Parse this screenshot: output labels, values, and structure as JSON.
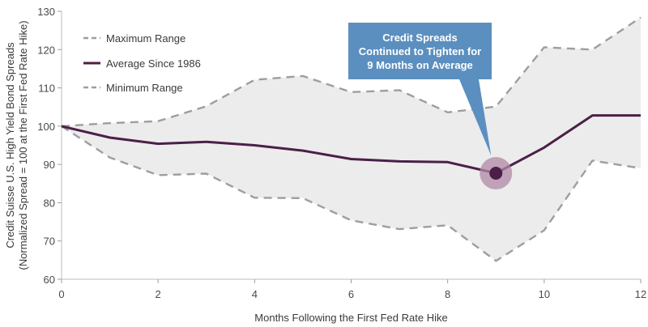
{
  "chart_data": {
    "type": "line",
    "title": "",
    "xlabel": "Months Following the First Fed Rate Hike",
    "ylabel_lines": [
      "Credit Suisse U.S. High Yield Bond Spreads",
      "(Normalized Spread = 100 at the First Fed Rate Hike)"
    ],
    "x": [
      0,
      1,
      2,
      3,
      4,
      5,
      6,
      7,
      8,
      9,
      10,
      11,
      12
    ],
    "xlim": [
      0,
      12
    ],
    "ylim": [
      60,
      130
    ],
    "x_ticks": [
      0,
      2,
      4,
      6,
      8,
      10,
      12
    ],
    "y_ticks": [
      60,
      70,
      80,
      90,
      100,
      110,
      120,
      130
    ],
    "grid": false,
    "legend_position": "top-left",
    "series": [
      {
        "name": "Maximum Range",
        "style": "dashed",
        "color": "#9e9e9e",
        "values": [
          100,
          100.8,
          101.3,
          105.2,
          112.1,
          113.1,
          108.9,
          109.4,
          103.6,
          105.1,
          120.6,
          120,
          128.4
        ]
      },
      {
        "name": "Average Since 1986",
        "style": "solid",
        "color": "#4b1f47",
        "values": [
          100,
          97,
          95.4,
          95.9,
          95,
          93.6,
          91.4,
          90.8,
          90.6,
          87.7,
          94.4,
          102.8,
          102.8
        ]
      },
      {
        "name": "Minimum Range",
        "style": "dashed",
        "color": "#9e9e9e",
        "values": [
          100,
          91.8,
          87.2,
          87.6,
          81.3,
          81.2,
          75.4,
          73.1,
          74.1,
          64.8,
          72.8,
          91,
          89
        ]
      }
    ],
    "band_fill": "#ececec",
    "highlight": {
      "x": 9,
      "y": 87.7,
      "color": "#4b1f47",
      "halo": "#b08aa7"
    },
    "callout": {
      "lines": [
        "Credit Spreads",
        "Continued to Tighten for",
        "9 Months on Average"
      ],
      "background": "#5b8fbf"
    }
  }
}
